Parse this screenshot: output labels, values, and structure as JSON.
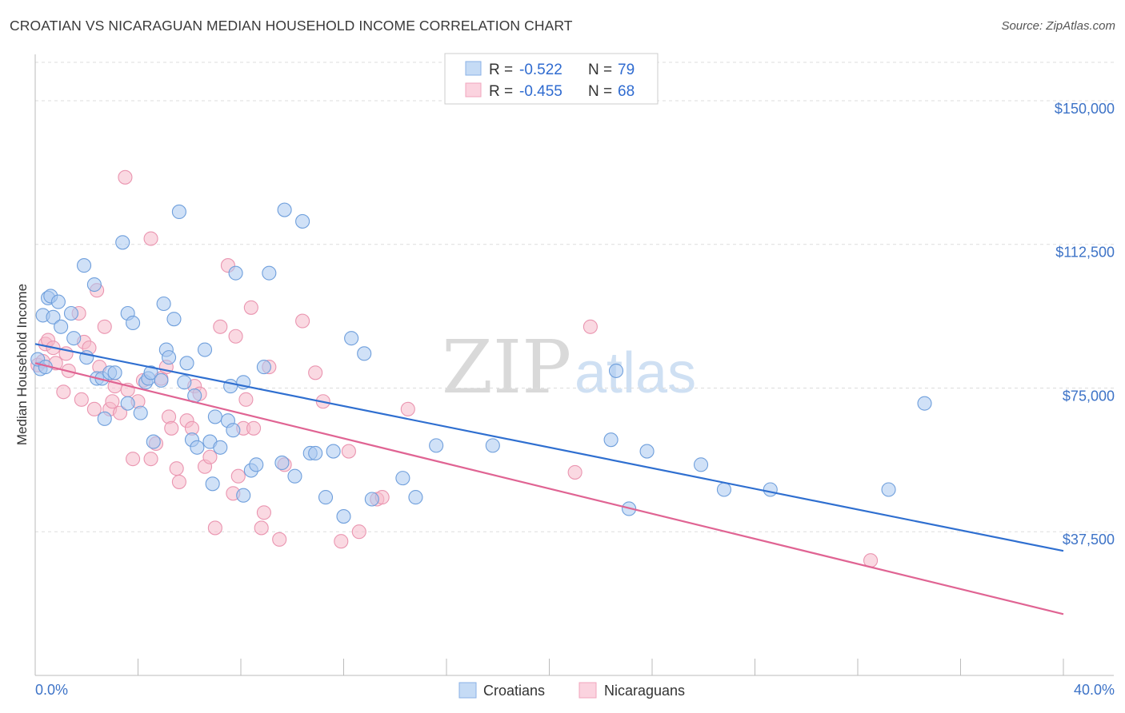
{
  "header": {
    "title": "CROATIAN VS NICARAGUAN MEDIAN HOUSEHOLD INCOME CORRELATION CHART",
    "source": "Source: ZipAtlas.com"
  },
  "watermark": {
    "zip": "ZIP",
    "atlas": "atlas"
  },
  "legend": {
    "rows": [
      {
        "r_label": "R =",
        "r_value": "-0.522",
        "n_label": "N =",
        "n_value": "79",
        "color": "#a9c8f0"
      },
      {
        "r_label": "R =",
        "r_value": "-0.455",
        "n_label": "N =",
        "n_value": "68",
        "color": "#f6b9cb"
      }
    ]
  },
  "bottom_legend": [
    {
      "label": "Croatians",
      "color": "#a9c8f0"
    },
    {
      "label": "Nicaraguans",
      "color": "#f6b9cb"
    }
  ],
  "chart_data": {
    "type": "scatter",
    "title": "CROATIAN VS NICARAGUAN MEDIAN HOUSEHOLD INCOME CORRELATION CHART",
    "ylabel": "Median Household Income",
    "xlabel": "",
    "xlim": [
      0,
      40
    ],
    "ylim": [
      0,
      160000
    ],
    "x_tick_labels": [
      "0.0%",
      "40.0%"
    ],
    "y_ticks": [
      37500,
      75000,
      112500,
      150000
    ],
    "y_tick_labels": [
      "$37,500",
      "$75,000",
      "$112,500",
      "$150,000"
    ],
    "grid": "horizontal dashed",
    "legend_position": "top-center",
    "colors": {
      "croatians": "#2f6fd0",
      "nicaraguans": "#e06493",
      "croatians_fill": "#a9c8f0",
      "nicaraguans_fill": "#f6b9cb"
    },
    "series": [
      {
        "name": "Croatians",
        "trend": {
          "x": [
            0,
            40
          ],
          "y": [
            86500,
            32500
          ]
        },
        "points": [
          [
            0.2,
            80000
          ],
          [
            0.3,
            94000
          ],
          [
            0.5,
            98500
          ],
          [
            0.6,
            99000
          ],
          [
            0.7,
            93500
          ],
          [
            0.9,
            97500
          ],
          [
            1.0,
            91000
          ],
          [
            1.4,
            94500
          ],
          [
            1.5,
            88000
          ],
          [
            1.9,
            107000
          ],
          [
            2.0,
            83000
          ],
          [
            2.3,
            102000
          ],
          [
            2.4,
            77500
          ],
          [
            2.6,
            77500
          ],
          [
            2.7,
            67000
          ],
          [
            2.9,
            79000
          ],
          [
            3.1,
            79000
          ],
          [
            3.4,
            113000
          ],
          [
            3.6,
            71000
          ],
          [
            3.6,
            94500
          ],
          [
            3.8,
            92000
          ],
          [
            4.1,
            68500
          ],
          [
            4.3,
            76500
          ],
          [
            4.4,
            77500
          ],
          [
            4.5,
            79000
          ],
          [
            4.6,
            61000
          ],
          [
            4.9,
            77000
          ],
          [
            5.0,
            97000
          ],
          [
            5.1,
            85000
          ],
          [
            5.2,
            83000
          ],
          [
            5.4,
            93000
          ],
          [
            5.6,
            121000
          ],
          [
            5.8,
            76500
          ],
          [
            5.9,
            81500
          ],
          [
            6.1,
            61500
          ],
          [
            6.2,
            73000
          ],
          [
            6.3,
            59500
          ],
          [
            6.6,
            85000
          ],
          [
            6.8,
            61000
          ],
          [
            6.9,
            50000
          ],
          [
            7.0,
            67500
          ],
          [
            7.2,
            59500
          ],
          [
            7.5,
            66500
          ],
          [
            7.6,
            75500
          ],
          [
            7.7,
            64000
          ],
          [
            7.8,
            105000
          ],
          [
            8.1,
            47000
          ],
          [
            8.1,
            76500
          ],
          [
            8.4,
            53500
          ],
          [
            8.6,
            55000
          ],
          [
            8.9,
            80500
          ],
          [
            9.1,
            105000
          ],
          [
            9.6,
            55500
          ],
          [
            9.7,
            121500
          ],
          [
            10.1,
            52000
          ],
          [
            10.4,
            118500
          ],
          [
            10.7,
            58000
          ],
          [
            10.9,
            58000
          ],
          [
            11.3,
            46500
          ],
          [
            11.6,
            58500
          ],
          [
            12.0,
            41500
          ],
          [
            12.3,
            88000
          ],
          [
            12.8,
            84000
          ],
          [
            13.1,
            46000
          ],
          [
            14.3,
            51500
          ],
          [
            14.8,
            46500
          ],
          [
            15.6,
            60000
          ],
          [
            17.8,
            60000
          ],
          [
            22.6,
            79500
          ],
          [
            22.4,
            61500
          ],
          [
            23.1,
            43500
          ],
          [
            23.8,
            58500
          ],
          [
            25.9,
            55000
          ],
          [
            26.8,
            48500
          ],
          [
            28.6,
            48500
          ],
          [
            33.2,
            48500
          ],
          [
            34.6,
            71000
          ],
          [
            0.1,
            82500
          ],
          [
            0.4,
            80500
          ]
        ]
      },
      {
        "name": "Nicaraguans",
        "trend": {
          "x": [
            0,
            40
          ],
          "y": [
            81500,
            16000
          ]
        },
        "points": [
          [
            0.1,
            81000
          ],
          [
            0.3,
            82000
          ],
          [
            0.4,
            86500
          ],
          [
            0.5,
            87500
          ],
          [
            0.7,
            85500
          ],
          [
            0.8,
            81500
          ],
          [
            1.1,
            74000
          ],
          [
            1.2,
            84000
          ],
          [
            1.3,
            79500
          ],
          [
            1.7,
            94500
          ],
          [
            1.8,
            72000
          ],
          [
            1.9,
            87000
          ],
          [
            2.1,
            85500
          ],
          [
            2.3,
            69500
          ],
          [
            2.4,
            100500
          ],
          [
            2.5,
            80500
          ],
          [
            2.7,
            91000
          ],
          [
            2.9,
            69500
          ],
          [
            3.0,
            71500
          ],
          [
            3.1,
            75500
          ],
          [
            3.3,
            68500
          ],
          [
            3.5,
            130000
          ],
          [
            3.6,
            74500
          ],
          [
            3.8,
            56500
          ],
          [
            4.0,
            71500
          ],
          [
            4.2,
            77000
          ],
          [
            4.5,
            114000
          ],
          [
            4.5,
            56500
          ],
          [
            4.7,
            60500
          ],
          [
            4.9,
            77500
          ],
          [
            5.1,
            80500
          ],
          [
            5.2,
            67500
          ],
          [
            5.3,
            64500
          ],
          [
            5.5,
            54000
          ],
          [
            5.6,
            50500
          ],
          [
            5.9,
            66500
          ],
          [
            6.1,
            64500
          ],
          [
            6.2,
            75500
          ],
          [
            6.4,
            73500
          ],
          [
            6.6,
            54500
          ],
          [
            6.8,
            57000
          ],
          [
            7.0,
            38500
          ],
          [
            7.2,
            91000
          ],
          [
            7.5,
            107000
          ],
          [
            7.7,
            47500
          ],
          [
            7.8,
            88500
          ],
          [
            7.9,
            52000
          ],
          [
            8.1,
            64500
          ],
          [
            8.2,
            72000
          ],
          [
            8.4,
            96000
          ],
          [
            8.5,
            64500
          ],
          [
            8.8,
            38500
          ],
          [
            8.9,
            42500
          ],
          [
            9.1,
            80500
          ],
          [
            9.5,
            35500
          ],
          [
            9.7,
            55000
          ],
          [
            10.4,
            92500
          ],
          [
            10.9,
            79000
          ],
          [
            11.2,
            71500
          ],
          [
            11.9,
            35000
          ],
          [
            12.2,
            58500
          ],
          [
            12.6,
            37500
          ],
          [
            13.3,
            46000
          ],
          [
            13.5,
            46500
          ],
          [
            14.5,
            69500
          ],
          [
            21.0,
            53000
          ],
          [
            21.6,
            91000
          ],
          [
            32.5,
            30000
          ]
        ]
      }
    ]
  }
}
